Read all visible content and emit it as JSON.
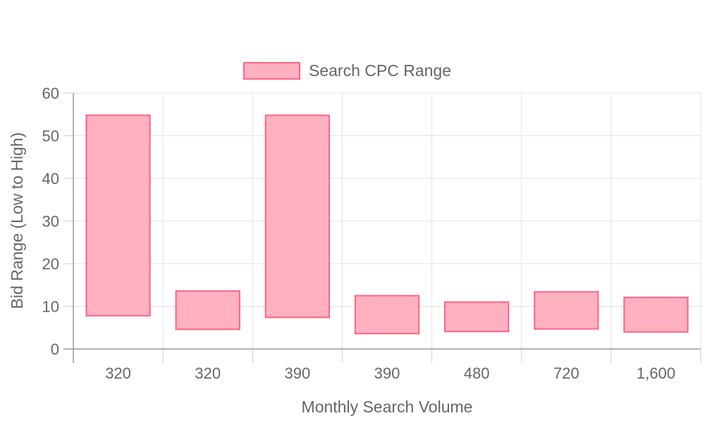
{
  "chart_data": {
    "type": "floating-bar",
    "xlabel": "Monthly Search Volume",
    "ylabel": "Bid Range (Low to High)",
    "ylim": [
      0,
      60
    ],
    "yticks": [
      0,
      10,
      20,
      30,
      40,
      50,
      60
    ],
    "grid": true,
    "legend": {
      "position": "top-center",
      "entries": [
        "Search CPC Range"
      ]
    },
    "categories": [
      "320",
      "320",
      "390",
      "390",
      "480",
      "720",
      "1,600"
    ],
    "series": [
      {
        "name": "Search CPC Range",
        "color": "#ffb1c1",
        "border_color": "#ff6384",
        "ranges": [
          [
            7.8,
            54.8
          ],
          [
            4.6,
            13.6
          ],
          [
            7.4,
            54.8
          ],
          [
            3.6,
            12.5
          ],
          [
            4.1,
            11.0
          ],
          [
            4.7,
            13.4
          ],
          [
            4.0,
            12.1
          ]
        ]
      }
    ]
  }
}
